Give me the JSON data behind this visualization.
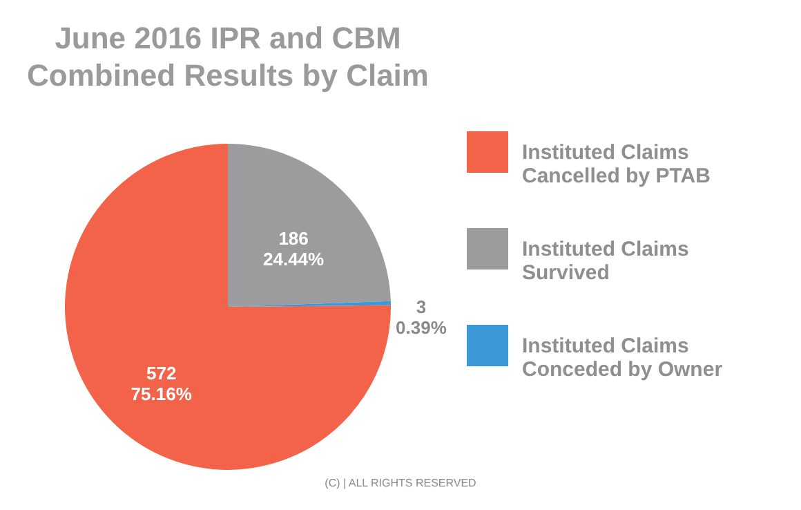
{
  "chart_data": {
    "type": "pie",
    "title": "June 2016 IPR and CBM Combined Results by Claim",
    "categories": [
      "Instituted Claims Cancelled by PTAB",
      "Instituted Claims Survived",
      "Instituted Claims Conceded by Owner"
    ],
    "values": [
      572,
      186,
      3
    ],
    "colors": [
      "#f2634a",
      "#9c9c9f",
      "#3b97d5"
    ],
    "value_labels": [
      "572\n75.16%",
      "186\n24.44%",
      "3\n0.39%"
    ],
    "legend": "right",
    "annotations": [
      "(C) | ALL RIGHTS RESERVED"
    ]
  }
}
